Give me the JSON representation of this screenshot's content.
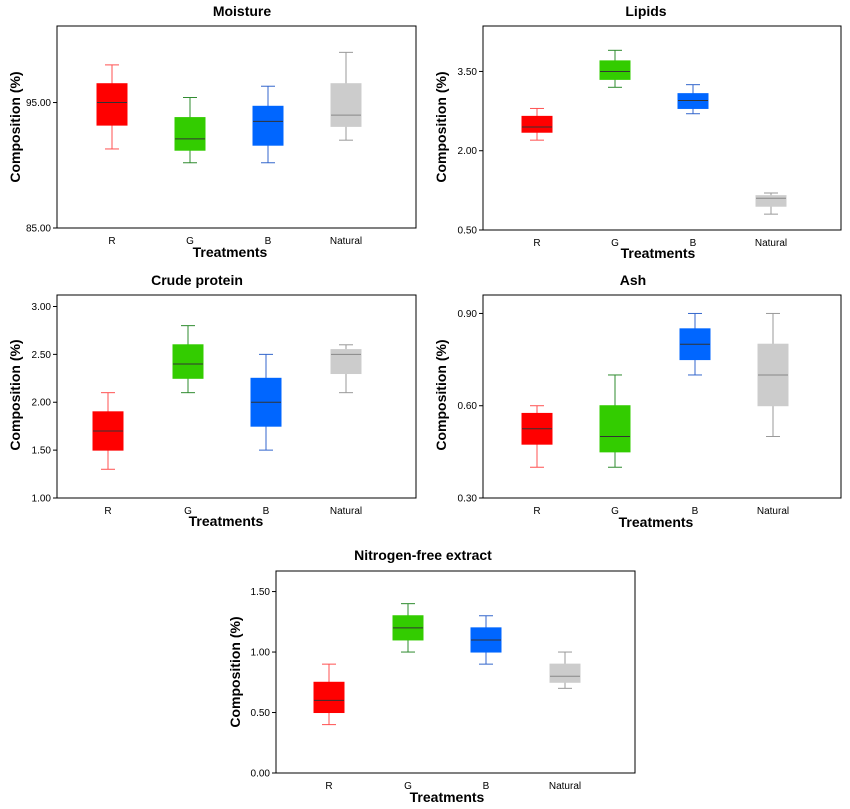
{
  "chart_data": [
    {
      "type": "box",
      "title": "Moisture",
      "xlabel": "Treatments",
      "ylabel": "Composition (%)",
      "categories": [
        "R",
        "G",
        "B",
        "Natural"
      ],
      "yticks": [
        "85.00",
        "95.00"
      ],
      "ytick_values": [
        85,
        95
      ],
      "ylim": [
        85,
        101.1
      ],
      "boxes": [
        {
          "category": "R",
          "color": "#ff0000",
          "whisker_color": "#ff5050",
          "min": 91.3,
          "q1": 93.2,
          "median": 95.0,
          "q3": 96.5,
          "max": 98.0
        },
        {
          "category": "G",
          "color": "#33cc00",
          "whisker_color": "#2e8b2e",
          "min": 90.2,
          "q1": 91.2,
          "median": 92.1,
          "q3": 93.8,
          "max": 95.4
        },
        {
          "category": "B",
          "color": "#0066ff",
          "whisker_color": "#3366cc",
          "min": 90.2,
          "q1": 91.6,
          "median": 93.5,
          "q3": 94.7,
          "max": 96.3
        },
        {
          "category": "Natural",
          "color": "#cccccc",
          "whisker_color": "#999999",
          "min": 92.0,
          "q1": 93.1,
          "median": 94.0,
          "q3": 96.5,
          "max": 99.0
        }
      ]
    },
    {
      "type": "box",
      "title": "Lipids",
      "xlabel": "Treatments",
      "ylabel": "Composition (%)",
      "categories": [
        "R",
        "G",
        "B",
        "Natural"
      ],
      "yticks": [
        "0.50",
        "2.00",
        "3.50"
      ],
      "ytick_values": [
        0.5,
        2.0,
        3.5
      ],
      "ylim": [
        0.5,
        4.36
      ],
      "boxes": [
        {
          "category": "R",
          "color": "#ff0000",
          "whisker_color": "#ff5050",
          "min": 2.2,
          "q1": 2.35,
          "median": 2.45,
          "q3": 2.65,
          "max": 2.8
        },
        {
          "category": "G",
          "color": "#33cc00",
          "whisker_color": "#2e8b2e",
          "min": 3.2,
          "q1": 3.35,
          "median": 3.5,
          "q3": 3.7,
          "max": 3.9
        },
        {
          "category": "B",
          "color": "#0066ff",
          "whisker_color": "#3366cc",
          "min": 2.7,
          "q1": 2.8,
          "median": 2.95,
          "q3": 3.08,
          "max": 3.25
        },
        {
          "category": "Natural",
          "color": "#cccccc",
          "whisker_color": "#999999",
          "min": 0.8,
          "q1": 0.95,
          "median": 1.1,
          "q3": 1.15,
          "max": 1.2
        }
      ]
    },
    {
      "type": "box",
      "title": "Crude protein",
      "xlabel": "Treatments",
      "ylabel": "Composition (%)",
      "categories": [
        "R",
        "G",
        "B",
        "Natural"
      ],
      "yticks": [
        "1.00",
        "1.50",
        "2.00",
        "2.50",
        "3.00"
      ],
      "ytick_values": [
        1.0,
        1.5,
        2.0,
        2.5,
        3.0
      ],
      "ylim": [
        1.0,
        3.12
      ],
      "boxes": [
        {
          "category": "R",
          "color": "#ff0000",
          "whisker_color": "#ff5050",
          "min": 1.3,
          "q1": 1.5,
          "median": 1.7,
          "q3": 1.9,
          "max": 2.1
        },
        {
          "category": "G",
          "color": "#33cc00",
          "whisker_color": "#2e8b2e",
          "min": 2.1,
          "q1": 2.25,
          "median": 2.4,
          "q3": 2.6,
          "max": 2.8
        },
        {
          "category": "B",
          "color": "#0066ff",
          "whisker_color": "#3366cc",
          "min": 1.5,
          "q1": 1.75,
          "median": 2.0,
          "q3": 2.25,
          "max": 2.5
        },
        {
          "category": "Natural",
          "color": "#cccccc",
          "whisker_color": "#999999",
          "min": 2.1,
          "q1": 2.3,
          "median": 2.5,
          "q3": 2.55,
          "max": 2.6
        }
      ]
    },
    {
      "type": "box",
      "title": "Ash",
      "xlabel": "Treatments",
      "ylabel": "Composition (%)",
      "categories": [
        "R",
        "G",
        "B",
        "Natural"
      ],
      "yticks": [
        "0.30",
        "0.60",
        "0.90"
      ],
      "ytick_values": [
        0.3,
        0.6,
        0.9
      ],
      "ylim": [
        0.3,
        0.96
      ],
      "boxes": [
        {
          "category": "R",
          "color": "#ff0000",
          "whisker_color": "#ff5050",
          "min": 0.4,
          "q1": 0.475,
          "median": 0.525,
          "q3": 0.575,
          "max": 0.6
        },
        {
          "category": "G",
          "color": "#33cc00",
          "whisker_color": "#2e8b2e",
          "min": 0.4,
          "q1": 0.45,
          "median": 0.5,
          "q3": 0.6,
          "max": 0.7
        },
        {
          "category": "B",
          "color": "#0066ff",
          "whisker_color": "#3366cc",
          "min": 0.7,
          "q1": 0.75,
          "median": 0.8,
          "q3": 0.85,
          "max": 0.9
        },
        {
          "category": "Natural",
          "color": "#cccccc",
          "whisker_color": "#999999",
          "min": 0.5,
          "q1": 0.6,
          "median": 0.7,
          "q3": 0.8,
          "max": 0.9
        }
      ]
    },
    {
      "type": "box",
      "title": "Nitrogen-free extract",
      "xlabel": "Treatments",
      "ylabel": "Composition (%)",
      "categories": [
        "R",
        "G",
        "B",
        "Natural"
      ],
      "yticks": [
        "0.00",
        "0.50",
        "1.00",
        "1.50"
      ],
      "ytick_values": [
        0.0,
        0.5,
        1.0,
        1.5
      ],
      "ylim": [
        0.0,
        1.67
      ],
      "boxes": [
        {
          "category": "R",
          "color": "#ff0000",
          "whisker_color": "#ff5050",
          "min": 0.4,
          "q1": 0.5,
          "median": 0.6,
          "q3": 0.75,
          "max": 0.9
        },
        {
          "category": "G",
          "color": "#33cc00",
          "whisker_color": "#2e8b2e",
          "min": 1.0,
          "q1": 1.1,
          "median": 1.2,
          "q3": 1.3,
          "max": 1.4
        },
        {
          "category": "B",
          "color": "#0066ff",
          "whisker_color": "#3366cc",
          "min": 0.9,
          "q1": 1.0,
          "median": 1.1,
          "q3": 1.2,
          "max": 1.3
        },
        {
          "category": "Natural",
          "color": "#cccccc",
          "whisker_color": "#999999",
          "min": 0.7,
          "q1": 0.75,
          "median": 0.8,
          "q3": 0.9,
          "max": 1.0
        }
      ]
    }
  ]
}
